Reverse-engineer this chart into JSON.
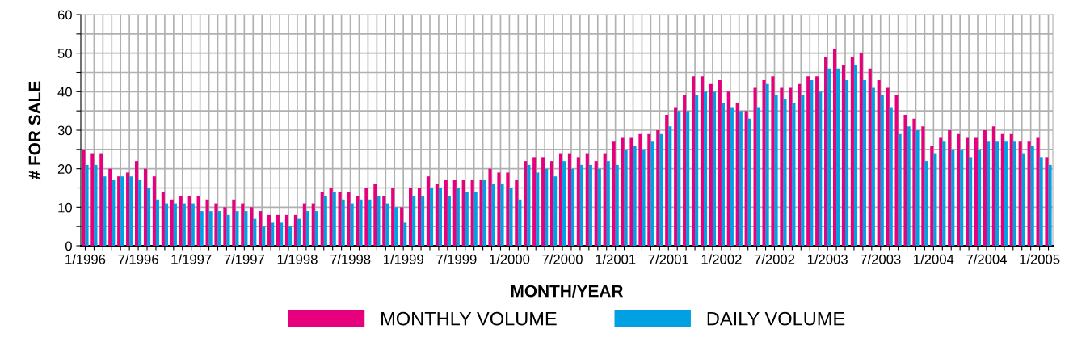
{
  "chart_data": {
    "type": "bar",
    "xlabel": "MONTH/YEAR",
    "ylabel": "# FOR SALE",
    "categories": [
      "1/1996",
      null,
      null,
      null,
      null,
      null,
      "7/1996",
      null,
      null,
      null,
      null,
      null,
      "1/1997",
      null,
      null,
      null,
      null,
      null,
      "7/1997",
      null,
      null,
      null,
      null,
      null,
      "1/1998",
      null,
      null,
      null,
      null,
      null,
      "7/1998",
      null,
      null,
      null,
      null,
      null,
      "1/1999",
      null,
      null,
      null,
      null,
      null,
      "7/1999",
      null,
      null,
      null,
      null,
      null,
      "1/2000",
      null,
      null,
      null,
      null,
      null,
      "7/2000",
      null,
      null,
      null,
      null,
      null,
      "1/2001",
      null,
      null,
      null,
      null,
      null,
      "7/2001",
      null,
      null,
      null,
      null,
      null,
      "1/2002",
      null,
      null,
      null,
      null,
      null,
      "7/2002",
      null,
      null,
      null,
      null,
      null,
      "1/2003",
      null,
      null,
      null,
      null,
      null,
      "7/2003",
      null,
      null,
      null,
      null,
      null,
      "1/2004",
      null,
      null,
      null,
      null,
      null,
      "7/2004",
      null,
      null,
      null,
      null,
      null,
      "1/2005",
      null
    ],
    "series": [
      {
        "name": "MONTHLY VOLUME",
        "color": "#e6007e",
        "values": [
          25,
          24,
          24,
          20,
          18,
          19,
          22,
          20,
          18,
          14,
          12,
          13,
          13,
          13,
          12,
          11,
          10,
          12,
          11,
          10,
          9,
          8,
          8,
          8,
          8,
          11,
          11,
          14,
          15,
          14,
          14,
          13,
          15,
          16,
          13,
          15,
          10,
          15,
          15,
          18,
          16,
          17,
          17,
          17,
          17,
          17,
          20,
          19,
          19,
          17,
          22,
          23,
          23,
          22,
          24,
          24,
          23,
          24,
          22,
          24,
          27,
          28,
          28,
          29,
          29,
          30,
          34,
          36,
          39,
          44,
          44,
          42,
          43,
          40,
          37,
          35,
          41,
          43,
          44,
          41,
          41,
          42,
          44,
          44,
          49,
          51,
          47,
          49,
          50,
          46,
          43,
          41,
          39,
          34,
          33,
          31,
          26,
          28,
          30,
          29,
          28,
          28,
          30,
          31,
          29,
          29,
          27,
          27,
          28,
          23
        ]
      },
      {
        "name": "DAILY VOLUME",
        "color": "#00a0e3",
        "values": [
          21,
          21,
          18,
          17,
          18,
          18,
          17,
          15,
          12,
          11,
          11,
          11,
          11,
          9,
          9,
          9,
          8,
          9,
          9,
          7,
          5,
          6,
          6,
          5,
          7,
          9,
          9,
          13,
          14,
          12,
          11,
          12,
          12,
          13,
          11,
          10,
          6,
          13,
          13,
          15,
          15,
          13,
          15,
          14,
          14,
          17,
          16,
          16,
          15,
          12,
          21,
          19,
          20,
          18,
          22,
          20,
          21,
          21,
          20,
          22,
          21,
          25,
          26,
          25,
          27,
          29,
          31,
          35,
          35,
          39,
          40,
          40,
          37,
          36,
          35,
          33,
          36,
          42,
          39,
          38,
          37,
          39,
          43,
          40,
          46,
          46,
          43,
          47,
          43,
          41,
          39,
          36,
          29,
          31,
          30,
          22,
          24,
          27,
          25,
          25,
          23,
          25,
          27,
          27,
          27,
          27,
          24,
          26,
          23,
          21
        ]
      }
    ],
    "ylim": [
      0,
      60
    ],
    "yticks": [
      0,
      {
        "value": 5,
        "label": null
      },
      10,
      {
        "value": 15,
        "label": null
      },
      20,
      {
        "value": 25,
        "label": null
      },
      30,
      {
        "value": 35,
        "label": null
      },
      40,
      {
        "value": 45,
        "label": null
      },
      50,
      {
        "value": 55,
        "label": null
      },
      60
    ],
    "grid": true,
    "legend": "bottom"
  }
}
